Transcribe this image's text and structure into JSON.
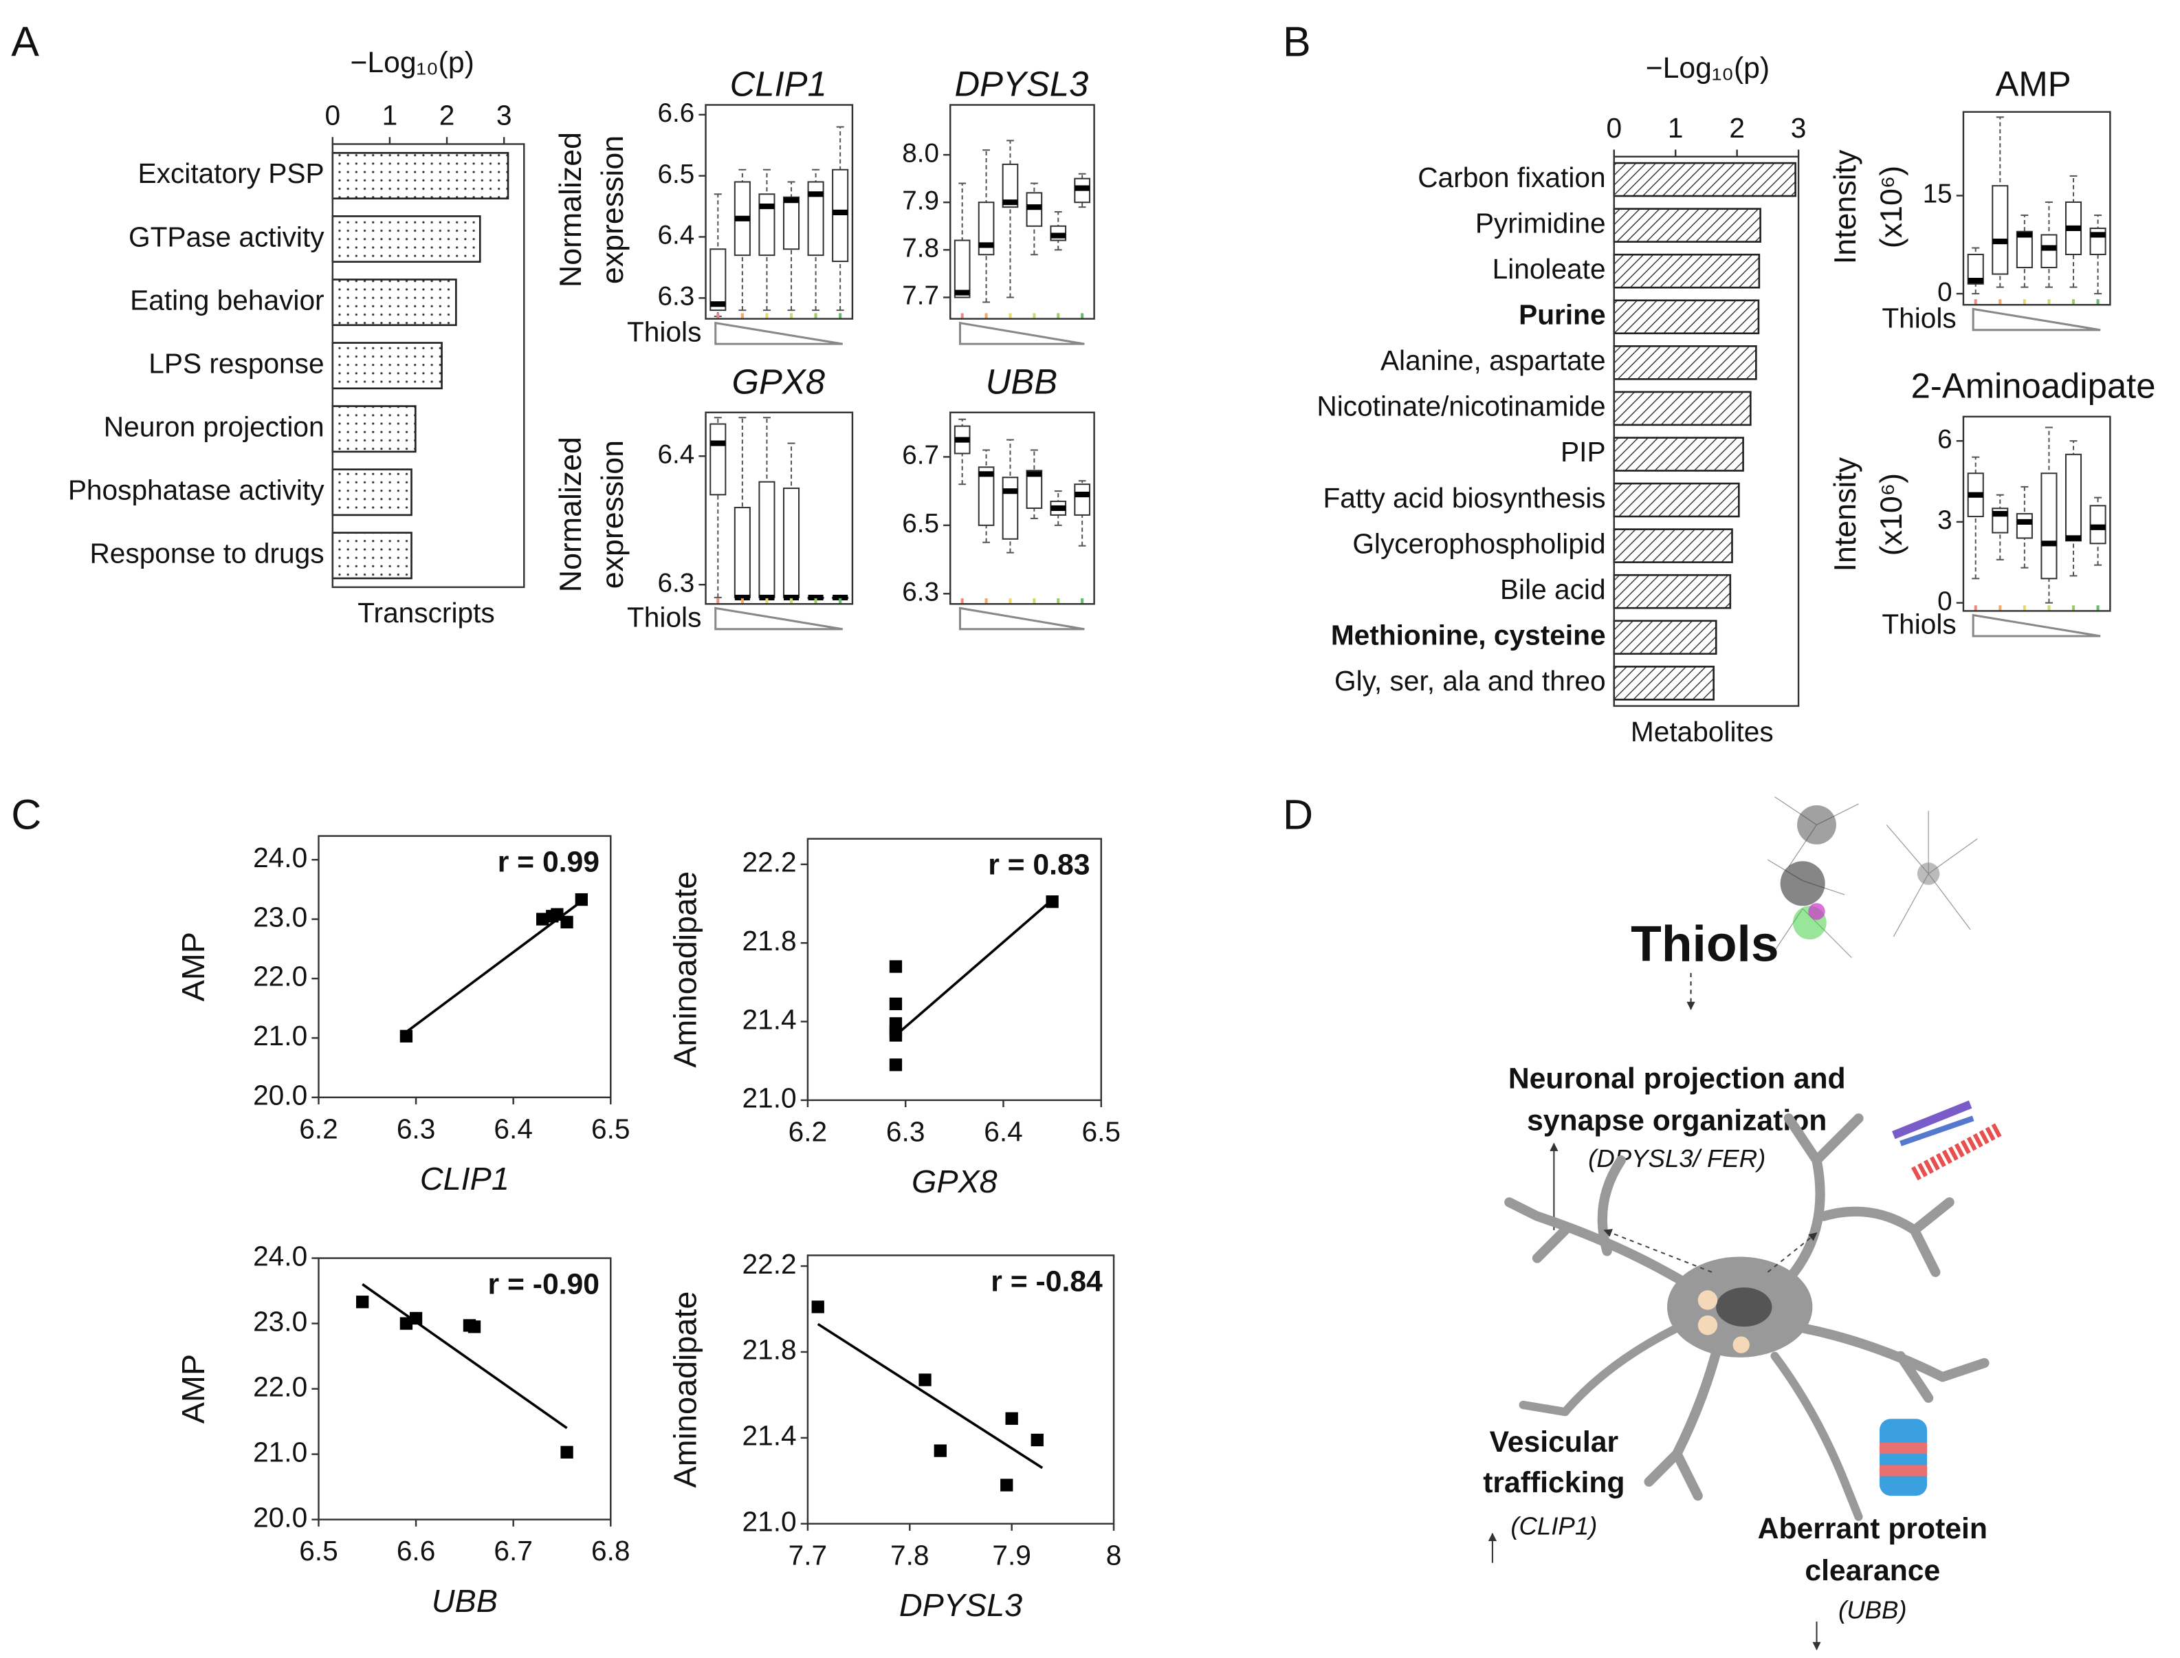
{
  "panels": [
    "A",
    "B",
    "C",
    "D"
  ],
  "chart_data": [
    {
      "type": "hbar",
      "xlabel": "−Log₁₀(p)",
      "footer": "Transcripts",
      "pattern": "dots",
      "categories": [
        "Excitatory PSP",
        "GTPase activity",
        "Eating behavior",
        "LPS response",
        "Neuron projection",
        "Phosphatase activity",
        "Response to drugs"
      ],
      "values": [
        3.07,
        2.58,
        2.16,
        1.91,
        1.45,
        1.38,
        1.38
      ],
      "bold": [
        false,
        false,
        false,
        false,
        false,
        false,
        false
      ],
      "xlim": [
        0,
        3.35
      ],
      "xticks": [
        0,
        1,
        2,
        3
      ]
    },
    {
      "type": "hbar",
      "xlabel": "−Log₁₀(p)",
      "footer": "Metabolites",
      "pattern": "hatch",
      "categories": [
        "Carbon fixation",
        "Pyrimidine",
        "Linoleate",
        "Purine",
        "Alanine, aspartate",
        "Nicotinate/nicotinamide",
        "PIP",
        "Fatty acid biosynthesis",
        "Glycerophospholipid",
        "Bile acid",
        "Methionine, cysteine",
        "Gly, ser, ala and threo"
      ],
      "values": [
        2.95,
        2.38,
        2.36,
        2.35,
        2.31,
        2.22,
        2.1,
        2.03,
        1.92,
        1.89,
        1.66,
        1.62
      ],
      "bold": [
        false,
        false,
        false,
        true,
        false,
        false,
        false,
        false,
        false,
        false,
        true,
        false
      ],
      "xlim": [
        0,
        3
      ],
      "xticks": [
        0,
        1,
        2,
        3
      ]
    },
    {
      "type": "box",
      "title": "CLIP1",
      "italic_title": true,
      "ylabel": [
        "Normalized",
        "expression"
      ],
      "group_label": "Thiols",
      "group_colors": [
        "#f08a80",
        "#f4a868",
        "#e8d870",
        "#c8dc70",
        "#9ccc65",
        "#66bb6a"
      ],
      "ylim": [
        6.266,
        6.616
      ],
      "yticks": [
        6.3,
        6.4,
        6.5,
        6.6
      ],
      "boxes": [
        {
          "min": 6.27,
          "q1": 6.28,
          "median": 6.29,
          "q3": 6.38,
          "max": 6.47
        },
        {
          "min": 6.28,
          "q1": 6.37,
          "median": 6.43,
          "q3": 6.49,
          "max": 6.51
        },
        {
          "min": 6.28,
          "q1": 6.37,
          "median": 6.45,
          "q3": 6.47,
          "max": 6.51
        },
        {
          "min": 6.28,
          "q1": 6.38,
          "median": 6.46,
          "q3": 6.465,
          "max": 6.49
        },
        {
          "min": 6.28,
          "q1": 6.37,
          "median": 6.47,
          "q3": 6.49,
          "max": 6.51
        },
        {
          "min": 6.28,
          "q1": 6.36,
          "median": 6.44,
          "q3": 6.51,
          "max": 6.58
        }
      ]
    },
    {
      "type": "box",
      "title": "DPYSL3",
      "italic_title": true,
      "group_colors": [
        "#f08a80",
        "#f4a868",
        "#e8d870",
        "#c8dc70",
        "#9ccc65",
        "#66bb6a"
      ],
      "ylim": [
        7.655,
        8.105
      ],
      "yticks": [
        7.7,
        7.8,
        7.9,
        {
          "value": 8.0,
          "label": "8.0"
        }
      ],
      "boxes": [
        {
          "min": 7.7,
          "q1": 7.7,
          "median": 7.71,
          "q3": 7.82,
          "max": 7.94
        },
        {
          "min": 7.69,
          "q1": 7.79,
          "median": 7.81,
          "q3": 7.9,
          "max": 8.01
        },
        {
          "min": 7.7,
          "q1": 7.89,
          "median": 7.9,
          "q3": 7.98,
          "max": 8.03
        },
        {
          "min": 7.79,
          "q1": 7.85,
          "median": 7.89,
          "q3": 7.92,
          "max": 7.94
        },
        {
          "min": 7.8,
          "q1": 7.82,
          "median": 7.83,
          "q3": 7.85,
          "max": 7.88
        },
        {
          "min": 7.89,
          "q1": 7.9,
          "median": 7.93,
          "q3": 7.95,
          "max": 7.96
        }
      ]
    },
    {
      "type": "box",
      "title": "GPX8",
      "italic_title": true,
      "ylabel": [
        "Normalized",
        "expression"
      ],
      "group_label": "Thiols",
      "group_colors": [
        "#f08a80",
        "#f4a868",
        "#e8d870",
        "#c8dc70",
        "#9ccc65",
        "#66bb6a"
      ],
      "ylim": [
        6.285,
        6.434
      ],
      "yticks": [
        6.3,
        6.4
      ],
      "boxes": [
        {
          "min": 6.29,
          "q1": 6.37,
          "median": 6.41,
          "q3": 6.425,
          "max": 6.43
        },
        {
          "min": 6.29,
          "q1": 6.29,
          "median": 6.29,
          "q3": 6.36,
          "max": 6.43
        },
        {
          "min": 6.29,
          "q1": 6.29,
          "median": 6.29,
          "q3": 6.38,
          "max": 6.43
        },
        {
          "min": 6.29,
          "q1": 6.29,
          "median": 6.29,
          "q3": 6.375,
          "max": 6.41
        },
        {
          "min": 6.29,
          "q1": 6.29,
          "median": 6.29,
          "q3": 6.29,
          "max": 6.29
        },
        {
          "min": 6.29,
          "q1": 6.29,
          "median": 6.29,
          "q3": 6.29,
          "max": 6.29
        }
      ]
    },
    {
      "type": "box",
      "title": "UBB",
      "italic_title": true,
      "group_colors": [
        "#f08a80",
        "#f4a868",
        "#e8d870",
        "#c8dc70",
        "#9ccc65",
        "#66bb6a"
      ],
      "ylim": [
        6.27,
        6.83
      ],
      "yticks": [
        6.3,
        6.5,
        6.7
      ],
      "boxes": [
        {
          "min": 6.62,
          "q1": 6.71,
          "median": 6.75,
          "q3": 6.79,
          "max": 6.81
        },
        {
          "min": 6.45,
          "q1": 6.5,
          "median": 6.65,
          "q3": 6.67,
          "max": 6.72
        },
        {
          "min": 6.42,
          "q1": 6.46,
          "median": 6.6,
          "q3": 6.64,
          "max": 6.75
        },
        {
          "min": 6.52,
          "q1": 6.55,
          "median": 6.65,
          "q3": 6.66,
          "max": 6.72
        },
        {
          "min": 6.5,
          "q1": 6.53,
          "median": 6.55,
          "q3": 6.57,
          "max": 6.6
        },
        {
          "min": 6.44,
          "q1": 6.53,
          "median": 6.59,
          "q3": 6.62,
          "max": 6.63
        }
      ]
    },
    {
      "type": "box",
      "title": "AMP",
      "italic_title": false,
      "ylabel": [
        "Intensity",
        "(x10⁶)"
      ],
      "group_label": "Thiols",
      "group_colors": [
        "#f08a80",
        "#f4a868",
        "#e8d870",
        "#c8dc70",
        "#9ccc65",
        "#66bb6a"
      ],
      "ylim": [
        -1.7,
        27.8
      ],
      "yticks": [
        0,
        15
      ],
      "boxes": [
        {
          "min": 0,
          "q1": 1.5,
          "median": 2,
          "q3": 6,
          "max": 7
        },
        {
          "min": 1,
          "q1": 3,
          "median": 8,
          "q3": 16.5,
          "max": 27
        },
        {
          "min": 1,
          "q1": 4,
          "median": 9,
          "q3": 9.5,
          "max": 12
        },
        {
          "min": 1,
          "q1": 4,
          "median": 7,
          "q3": 9,
          "max": 14
        },
        {
          "min": 1,
          "q1": 6,
          "median": 10,
          "q3": 14,
          "max": 18
        },
        {
          "min": 0,
          "q1": 6,
          "median": 9,
          "q3": 10,
          "max": 12
        }
      ]
    },
    {
      "type": "box",
      "title": "2-Aminoadipate",
      "italic_title": false,
      "ylabel": [
        "Intensity",
        "(x10⁶)"
      ],
      "group_label": "Thiols",
      "group_colors": [
        "#f08a80",
        "#f4a868",
        "#e8d870",
        "#c8dc70",
        "#9ccc65",
        "#66bb6a"
      ],
      "ylim": [
        -0.3,
        6.9
      ],
      "yticks": [
        0,
        3,
        6
      ],
      "boxes": [
        {
          "min": 0.9,
          "q1": 3.2,
          "median": 4,
          "q3": 4.8,
          "max": 5.4
        },
        {
          "min": 1.6,
          "q1": 2.6,
          "median": 3.3,
          "q3": 3.5,
          "max": 4
        },
        {
          "min": 1.3,
          "q1": 2.4,
          "median": 3,
          "q3": 3.3,
          "max": 4.3
        },
        {
          "min": 0,
          "q1": 0.9,
          "median": 2.2,
          "q3": 4.8,
          "max": 6.5
        },
        {
          "min": 1,
          "q1": 2.3,
          "median": 2.4,
          "q3": 5.5,
          "max": 6
        },
        {
          "min": 1.4,
          "q1": 2.2,
          "median": 2.8,
          "q3": 3.6,
          "max": 3.9
        }
      ]
    },
    {
      "type": "scatter",
      "xlabel": "CLIP1",
      "ylabel": "AMP",
      "annotation": "r = 0.99",
      "x": [
        6.29,
        6.43,
        6.44,
        6.445,
        6.455,
        6.47
      ],
      "y": [
        21.03,
        23.0,
        23.05,
        23.08,
        22.95,
        23.33
      ],
      "fit": {
        "x": [
          6.29,
          6.47
        ],
        "y": [
          21.1,
          23.3
        ]
      },
      "xlim": [
        6.2,
        6.5
      ],
      "ylim": [
        20,
        24.4
      ],
      "xticks": [
        6.2,
        6.3,
        6.4,
        6.5
      ],
      "yticks": [
        {
          "value": 20,
          "label": "20.0"
        },
        {
          "value": 21,
          "label": "21.0"
        },
        {
          "value": 22,
          "label": "22.0"
        },
        {
          "value": 23,
          "label": "23.0"
        },
        {
          "value": 24,
          "label": "24.0"
        }
      ]
    },
    {
      "type": "scatter",
      "xlabel": "GPX8",
      "ylabel": "Aminoadipate",
      "annotation": "r = 0.83",
      "x": [
        6.29,
        6.29,
        6.29,
        6.29,
        6.29,
        6.29,
        6.45
      ],
      "y": [
        21.68,
        21.49,
        21.39,
        21.35,
        21.33,
        21.18,
        22.01
      ],
      "fit": {
        "x": [
          6.29,
          6.45
        ],
        "y": [
          21.33,
          22.02
        ]
      },
      "xlim": [
        6.2,
        6.5
      ],
      "ylim": [
        21,
        22.33
      ],
      "xticks": [
        6.2,
        6.3,
        6.4,
        6.5
      ],
      "yticks": [
        {
          "value": 21,
          "label": "21.0"
        },
        21.4,
        21.8,
        22.2
      ]
    },
    {
      "type": "scatter",
      "xlabel": "UBB",
      "ylabel": "AMP",
      "annotation": "r = -0.90",
      "x": [
        6.545,
        6.59,
        6.6,
        6.655,
        6.66,
        6.755
      ],
      "y": [
        23.33,
        23.0,
        23.08,
        22.97,
        22.95,
        21.03
      ],
      "fit": {
        "x": [
          6.545,
          6.755
        ],
        "y": [
          23.6,
          21.4
        ]
      },
      "xlim": [
        6.5,
        6.8
      ],
      "ylim": [
        20,
        24
      ],
      "xticks": [
        6.5,
        6.6,
        6.7,
        6.8
      ],
      "yticks": [
        {
          "value": 20,
          "label": "20.0"
        },
        {
          "value": 21,
          "label": "21.0"
        },
        {
          "value": 22,
          "label": "22.0"
        },
        {
          "value": 23,
          "label": "23.0"
        },
        {
          "value": 24,
          "label": "24.0"
        }
      ]
    },
    {
      "type": "scatter",
      "xlabel": "DPYSL3",
      "ylabel": "Aminoadipate",
      "annotation": "r = -0.84",
      "x": [
        7.71,
        7.815,
        7.83,
        7.895,
        7.9,
        7.925
      ],
      "y": [
        22.01,
        21.67,
        21.34,
        21.18,
        21.49,
        21.39
      ],
      "fit": {
        "x": [
          7.71,
          7.93
        ],
        "y": [
          21.93,
          21.26
        ]
      },
      "xlim": [
        7.7,
        8
      ],
      "ylim": [
        21,
        22.25
      ],
      "xticks": [
        7.7,
        7.8,
        7.9,
        8
      ],
      "yticks": [
        {
          "value": 21,
          "label": "21.0"
        },
        21.4,
        21.8,
        22.2
      ]
    }
  ],
  "diagram": {
    "title": "Thiols",
    "labels": [
      {
        "lines": [
          "Neuronal projection and",
          "synapse organization"
        ],
        "gene": "(DPYSL3/ FER)"
      },
      {
        "lines": [
          "Vesicular",
          "trafficking"
        ],
        "gene": "(CLIP1)"
      },
      {
        "lines": [
          "Aberrant protein",
          "clearance"
        ],
        "gene": "(UBB)"
      }
    ]
  }
}
